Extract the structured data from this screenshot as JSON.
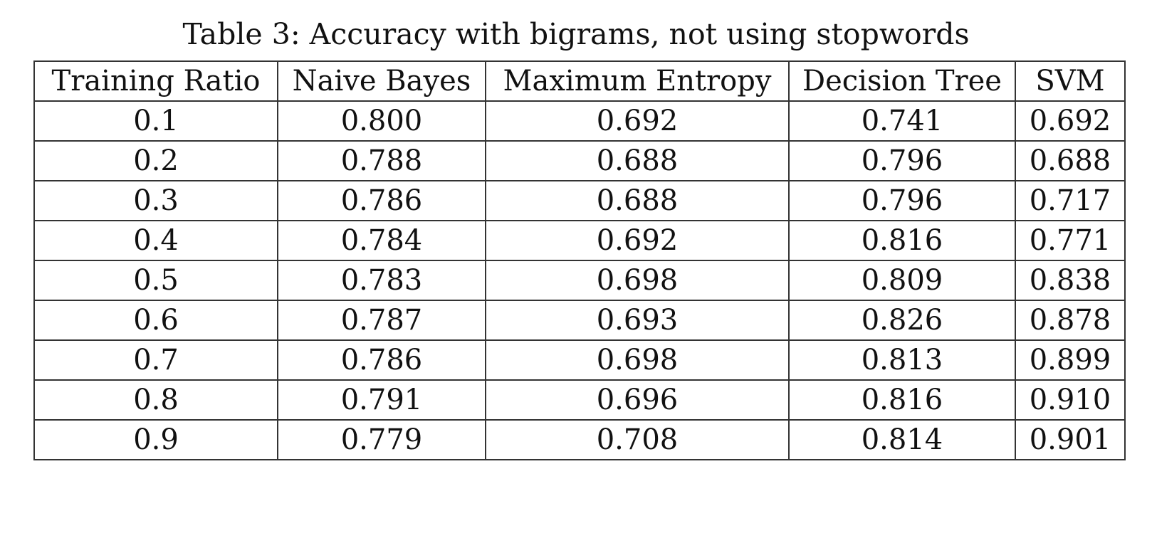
{
  "caption": "Table 3: Accuracy with bigrams, not using stopwords",
  "table": {
    "headers": [
      "Training Ratio",
      "Naive Bayes",
      "Maximum Entropy",
      "Decision Tree",
      "SVM"
    ],
    "rows": [
      [
        "0.1",
        "0.800",
        "0.692",
        "0.741",
        "0.692"
      ],
      [
        "0.2",
        "0.788",
        "0.688",
        "0.796",
        "0.688"
      ],
      [
        "0.3",
        "0.786",
        "0.688",
        "0.796",
        "0.717"
      ],
      [
        "0.4",
        "0.784",
        "0.692",
        "0.816",
        "0.771"
      ],
      [
        "0.5",
        "0.783",
        "0.698",
        "0.809",
        "0.838"
      ],
      [
        "0.6",
        "0.787",
        "0.693",
        "0.826",
        "0.878"
      ],
      [
        "0.7",
        "0.786",
        "0.698",
        "0.813",
        "0.899"
      ],
      [
        "0.8",
        "0.791",
        "0.696",
        "0.816",
        "0.910"
      ],
      [
        "0.9",
        "0.779",
        "0.708",
        "0.814",
        "0.901"
      ]
    ]
  }
}
